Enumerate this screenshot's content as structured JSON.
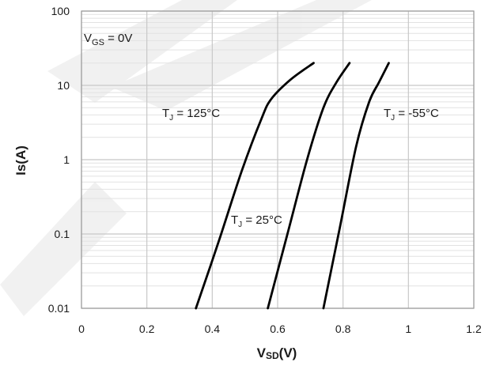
{
  "chart_data": {
    "type": "line",
    "x_scale": "linear",
    "y_scale": "log",
    "xlim": [
      0,
      1.2
    ],
    "ylim": [
      0.01,
      100
    ],
    "x_ticks": [
      "0",
      "0.2",
      "0.4",
      "0.6",
      "0.8",
      "1",
      "1.2"
    ],
    "y_ticks": [
      "100",
      "10",
      "1",
      "0.1",
      "0.01"
    ],
    "xlabel": {
      "main": "V",
      "sub": "SD",
      "unit": "(V)"
    },
    "ylabel": "Is(A)",
    "grid": true,
    "condition": {
      "main": "V",
      "sub": "GS",
      "rest": " = 0V"
    },
    "series": [
      {
        "name": {
          "main": "T",
          "sub": "J",
          "rest": " = 125°C"
        },
        "x": [
          0.35,
          0.42,
          0.49,
          0.55,
          0.58,
          0.64,
          0.71
        ],
        "y": [
          0.01,
          0.08,
          0.7,
          3.5,
          6.5,
          12,
          20
        ]
      },
      {
        "name": {
          "main": "T",
          "sub": "J",
          "rest": " = 25°C"
        },
        "x": [
          0.57,
          0.63,
          0.69,
          0.74,
          0.78,
          0.82
        ],
        "y": [
          0.01,
          0.1,
          1,
          5,
          11,
          20
        ]
      },
      {
        "name": {
          "main": "T",
          "sub": "J",
          "rest": " = -55°C"
        },
        "x": [
          0.74,
          0.79,
          0.84,
          0.88,
          0.91,
          0.94
        ],
        "y": [
          0.01,
          0.12,
          1.5,
          6,
          11,
          20
        ]
      }
    ],
    "colors": {
      "curve": "#000000",
      "major_grid": "#c8c8c8",
      "minor_grid": "#e2e2e2",
      "frame": "#9a9a9a"
    }
  }
}
